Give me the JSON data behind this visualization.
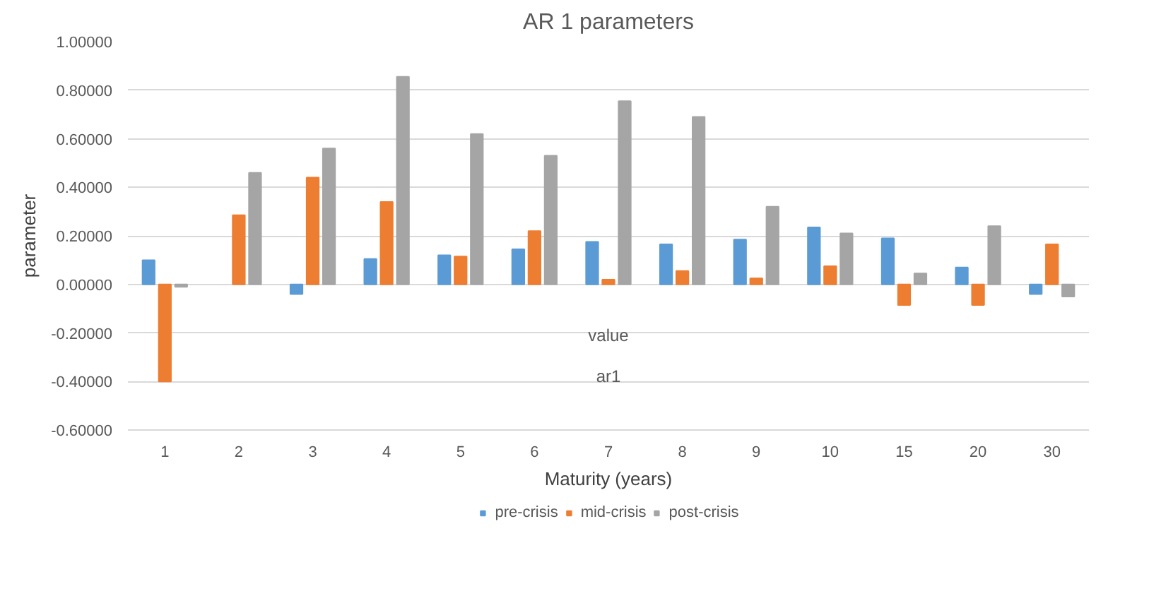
{
  "chart_data": {
    "type": "bar",
    "title": "AR 1 parameters",
    "xlabel": "Maturity (years)",
    "ylabel": "parameter",
    "categories": [
      "1",
      "2",
      "3",
      "4",
      "5",
      "6",
      "7",
      "8",
      "9",
      "10",
      "15",
      "20",
      "30"
    ],
    "series": [
      {
        "name": "pre-crisis",
        "color": "#5b9bd5",
        "values": [
          0.1,
          null,
          -0.04,
          0.105,
          0.12,
          0.145,
          0.175,
          0.165,
          0.185,
          0.235,
          0.19,
          0.07,
          -0.04
        ]
      },
      {
        "name": "mid-crisis",
        "color": "#ed7d31",
        "values": [
          -0.4,
          0.285,
          0.44,
          0.34,
          0.115,
          0.22,
          0.02,
          0.055,
          0.025,
          0.075,
          -0.085,
          -0.085,
          0.165
        ]
      },
      {
        "name": "post-crisis",
        "color": "#a5a5a5",
        "values": [
          -0.01,
          0.46,
          0.56,
          0.855,
          0.62,
          0.53,
          0.755,
          0.69,
          0.32,
          0.21,
          0.045,
          0.24,
          -0.05
        ]
      }
    ],
    "ylim": [
      -0.6,
      1.0
    ],
    "yticks": [
      {
        "value": -0.6,
        "label": "-0.60000"
      },
      {
        "value": -0.4,
        "label": "-0.40000"
      },
      {
        "value": -0.2,
        "label": "-0.20000"
      },
      {
        "value": 0,
        "label": "0.00000"
      },
      {
        "value": 0.2,
        "label": "0.20000"
      },
      {
        "value": 0.4,
        "label": "0.40000"
      },
      {
        "value": 0.6,
        "label": "0.60000"
      },
      {
        "value": 0.8,
        "label": "0.80000"
      },
      {
        "value": 1.0,
        "label": "1.00000"
      }
    ],
    "annotations": [
      "value",
      "ar1"
    ],
    "grid": "y",
    "legend": "bottom"
  }
}
